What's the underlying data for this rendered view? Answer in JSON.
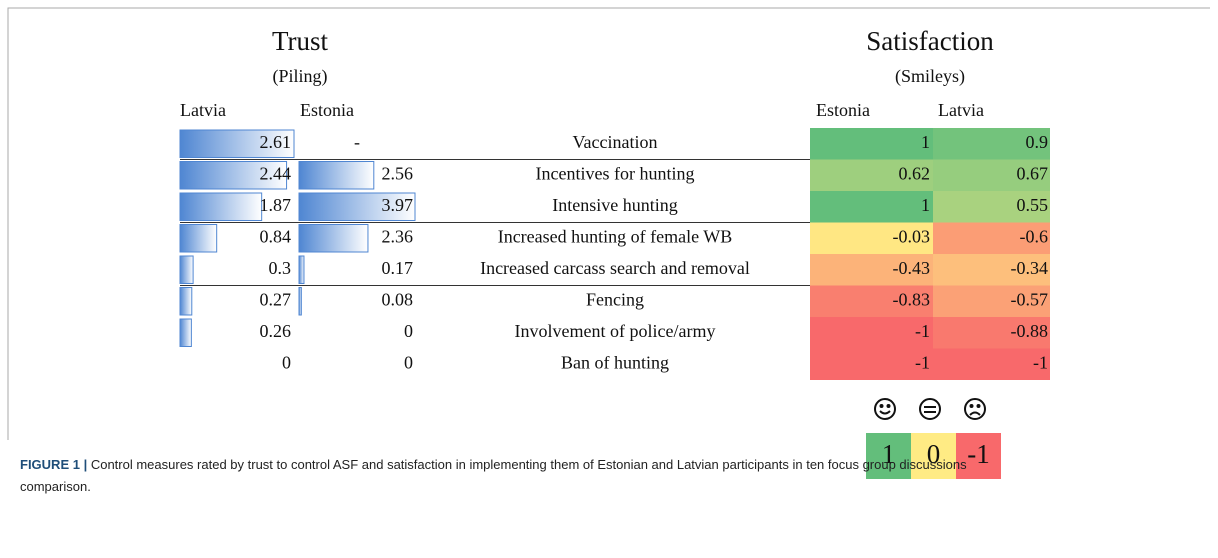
{
  "figure": {
    "trust": {
      "title": "Trust",
      "subtitle": "(Piling)",
      "columns": [
        "Latvia",
        "Estonia"
      ]
    },
    "satisfaction": {
      "title": "Satisfaction",
      "subtitle": "(Smileys)",
      "columns": [
        "Estonia",
        "Latvia"
      ]
    },
    "rows": [
      {
        "measure": "Vaccination",
        "trust_latvia": 2.61,
        "trust_estonia": "-",
        "sat_estonia": 1,
        "sat_latvia": 0.9
      },
      {
        "measure": "Incentives for hunting",
        "trust_latvia": 2.44,
        "trust_estonia": 2.56,
        "sat_estonia": 0.62,
        "sat_latvia": 0.67
      },
      {
        "measure": "Intensive hunting",
        "trust_latvia": 1.87,
        "trust_estonia": 3.97,
        "sat_estonia": 1,
        "sat_latvia": 0.55
      },
      {
        "measure": "Increased hunting of female WB",
        "trust_latvia": 0.84,
        "trust_estonia": 2.36,
        "sat_estonia": -0.03,
        "sat_latvia": -0.6
      },
      {
        "measure": "Increased carcass search and removal",
        "trust_latvia": 0.3,
        "trust_estonia": 0.17,
        "sat_estonia": -0.43,
        "sat_latvia": -0.34
      },
      {
        "measure": "Fencing",
        "trust_latvia": 0.27,
        "trust_estonia": 0.08,
        "sat_estonia": -0.83,
        "sat_latvia": -0.57
      },
      {
        "measure": "Involvement of police/army",
        "trust_latvia": 0.26,
        "trust_estonia": 0,
        "sat_estonia": -1,
        "sat_latvia": -0.88
      },
      {
        "measure": "Ban of hunting",
        "trust_latvia": 0,
        "trust_estonia": 0,
        "sat_estonia": -1,
        "sat_latvia": -1
      }
    ],
    "legend": [
      1,
      0,
      -1
    ]
  },
  "caption": {
    "label": "FIGURE 1 |",
    "text": "Control measures rated by trust to control ASF and satisfaction in implementing them of Estonian and Latvian participants in ten focus group discussions comparison."
  }
}
